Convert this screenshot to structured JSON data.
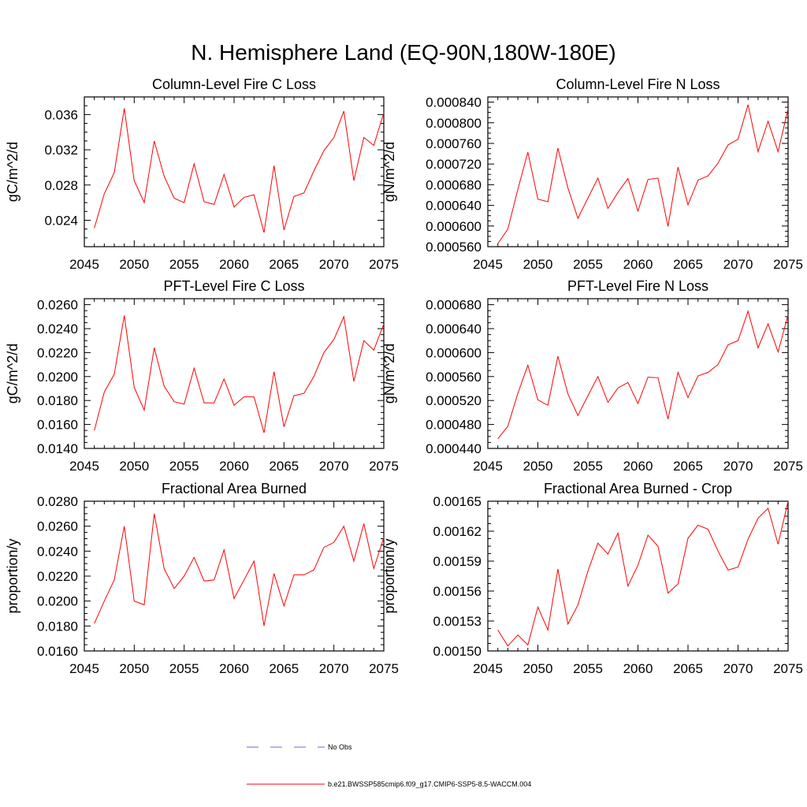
{
  "page_title": "N. Hemisphere Land (EQ-90N,180W-180E)",
  "legend": {
    "obs_label": "No Obs",
    "obs_color": "#6a6acd",
    "model_label": "b.e21.BWSSP585cmip6.f09_g17.CMIP6-SSP5-8.5-WACCM.004",
    "model_color": "#ff0000"
  },
  "chart_data": [
    {
      "type": "line",
      "title": "Column-Level Fire C Loss",
      "ylabel": "gC/m^2/d",
      "xlabel": "",
      "xlim": [
        2045,
        2075
      ],
      "ylim": [
        0.021,
        0.038
      ],
      "xticks": [
        2045,
        2050,
        2055,
        2060,
        2065,
        2070,
        2075
      ],
      "yticks": [
        0.024,
        0.028,
        0.032,
        0.036
      ],
      "ytick_labels": [
        "0.024",
        "0.028",
        "0.032",
        "0.036"
      ],
      "x": [
        2046,
        2047,
        2048,
        2049,
        2050,
        2051,
        2052,
        2053,
        2054,
        2055,
        2056,
        2057,
        2058,
        2059,
        2060,
        2061,
        2062,
        2063,
        2064,
        2065,
        2066,
        2067,
        2068,
        2069,
        2070,
        2071,
        2072,
        2073,
        2074,
        2075
      ],
      "series": [
        {
          "values": [
            0.0231,
            0.027,
            0.0294,
            0.0367,
            0.0285,
            0.026,
            0.033,
            0.029,
            0.0265,
            0.026,
            0.0304,
            0.0261,
            0.0258,
            0.0292,
            0.0255,
            0.0266,
            0.0269,
            0.0226,
            0.0302,
            0.0229,
            0.0267,
            0.0271,
            0.0296,
            0.0319,
            0.0334,
            0.0364,
            0.0285,
            0.0334,
            0.0325,
            0.0362
          ]
        }
      ],
      "grid": false
    },
    {
      "type": "line",
      "title": "Column-Level Fire N Loss",
      "ylabel": "gN/m^2/d",
      "xlabel": "",
      "xlim": [
        2045,
        2075
      ],
      "ylim": [
        0.00056,
        0.00085
      ],
      "xticks": [
        2045,
        2050,
        2055,
        2060,
        2065,
        2070,
        2075
      ],
      "yticks": [
        0.00056,
        0.0006,
        0.00064,
        0.00068,
        0.00072,
        0.00076,
        0.0008,
        0.00084
      ],
      "ytick_labels": [
        "0.000560",
        "0.000600",
        "0.000640",
        "0.000680",
        "0.000720",
        "0.000760",
        "0.000800",
        "0.000840"
      ],
      "x": [
        2046,
        2047,
        2048,
        2049,
        2050,
        2051,
        2052,
        2053,
        2054,
        2055,
        2056,
        2057,
        2058,
        2059,
        2060,
        2061,
        2062,
        2063,
        2064,
        2065,
        2066,
        2067,
        2068,
        2069,
        2070,
        2071,
        2072,
        2073,
        2074,
        2075
      ],
      "series": [
        {
          "values": [
            0.000566,
            0.000594,
            0.000671,
            0.000743,
            0.000652,
            0.000647,
            0.000751,
            0.000674,
            0.000615,
            0.000654,
            0.000693,
            0.000634,
            0.000665,
            0.000692,
            0.000629,
            0.00069,
            0.000693,
            0.000599,
            0.000714,
            0.000641,
            0.000689,
            0.000697,
            0.000722,
            0.000757,
            0.000768,
            0.000835,
            0.000744,
            0.000803,
            0.000744,
            0.000827
          ]
        }
      ],
      "grid": false
    },
    {
      "type": "line",
      "title": "PFT-Level Fire C Loss",
      "ylabel": "gC/m^2/d",
      "xlabel": "",
      "xlim": [
        2045,
        2075
      ],
      "ylim": [
        0.014,
        0.0265
      ],
      "xticks": [
        2045,
        2050,
        2055,
        2060,
        2065,
        2070,
        2075
      ],
      "yticks": [
        0.014,
        0.016,
        0.018,
        0.02,
        0.022,
        0.024,
        0.026
      ],
      "ytick_labels": [
        "0.0140",
        "0.0160",
        "0.0180",
        "0.0200",
        "0.0220",
        "0.0240",
        "0.0260"
      ],
      "x": [
        2046,
        2047,
        2048,
        2049,
        2050,
        2051,
        2052,
        2053,
        2054,
        2055,
        2056,
        2057,
        2058,
        2059,
        2060,
        2061,
        2062,
        2063,
        2064,
        2065,
        2066,
        2067,
        2068,
        2069,
        2070,
        2071,
        2072,
        2073,
        2074,
        2075
      ],
      "series": [
        {
          "values": [
            0.0155,
            0.0187,
            0.0202,
            0.0251,
            0.0191,
            0.0172,
            0.0224,
            0.0192,
            0.0179,
            0.0177,
            0.0207,
            0.0178,
            0.0178,
            0.0198,
            0.0176,
            0.0183,
            0.0183,
            0.0153,
            0.0204,
            0.0158,
            0.0184,
            0.0186,
            0.02,
            0.022,
            0.0231,
            0.025,
            0.0196,
            0.023,
            0.0222,
            0.0244
          ]
        }
      ],
      "grid": false
    },
    {
      "type": "line",
      "title": "PFT-Level Fire N Loss",
      "ylabel": "gN/m^2/d",
      "xlabel": "",
      "xlim": [
        2045,
        2075
      ],
      "ylim": [
        0.00044,
        0.00069
      ],
      "xticks": [
        2045,
        2050,
        2055,
        2060,
        2065,
        2070,
        2075
      ],
      "yticks": [
        0.00044,
        0.00048,
        0.00052,
        0.00056,
        0.0006,
        0.00064,
        0.00068
      ],
      "ytick_labels": [
        "0.000440",
        "0.000480",
        "0.000520",
        "0.000560",
        "0.000600",
        "0.000640",
        "0.000680"
      ],
      "x": [
        2046,
        2047,
        2048,
        2049,
        2050,
        2051,
        2052,
        2053,
        2054,
        2055,
        2056,
        2057,
        2058,
        2059,
        2060,
        2061,
        2062,
        2063,
        2064,
        2065,
        2066,
        2067,
        2068,
        2069,
        2070,
        2071,
        2072,
        2073,
        2074,
        2075
      ],
      "series": [
        {
          "values": [
            0.000456,
            0.000477,
            0.000532,
            0.000579,
            0.000521,
            0.000512,
            0.000594,
            0.000531,
            0.000495,
            0.000528,
            0.00056,
            0.000517,
            0.000541,
            0.00055,
            0.000515,
            0.000559,
            0.000558,
            0.000489,
            0.000567,
            0.000525,
            0.000561,
            0.000567,
            0.00058,
            0.000613,
            0.00062,
            0.000669,
            0.000608,
            0.000648,
            0.000601,
            0.000663
          ]
        }
      ],
      "grid": false
    },
    {
      "type": "line",
      "title": "Fractional Area Burned",
      "ylabel": "proportion/y",
      "xlabel": "",
      "xlim": [
        2045,
        2075
      ],
      "ylim": [
        0.016,
        0.028
      ],
      "xticks": [
        2045,
        2050,
        2055,
        2060,
        2065,
        2070,
        2075
      ],
      "yticks": [
        0.016,
        0.018,
        0.02,
        0.022,
        0.024,
        0.026,
        0.028
      ],
      "ytick_labels": [
        "0.0160",
        "0.0180",
        "0.0200",
        "0.0220",
        "0.0240",
        "0.0260",
        "0.0280"
      ],
      "x": [
        2046,
        2047,
        2048,
        2049,
        2050,
        2051,
        2052,
        2053,
        2054,
        2055,
        2056,
        2057,
        2058,
        2059,
        2060,
        2061,
        2062,
        2063,
        2064,
        2065,
        2066,
        2067,
        2068,
        2069,
        2070,
        2071,
        2072,
        2073,
        2074,
        2075
      ],
      "series": [
        {
          "values": [
            0.0182,
            0.02,
            0.0217,
            0.026,
            0.02,
            0.0197,
            0.027,
            0.0226,
            0.021,
            0.022,
            0.0235,
            0.0216,
            0.0217,
            0.0241,
            0.0202,
            0.0217,
            0.0232,
            0.018,
            0.0222,
            0.0196,
            0.0221,
            0.0221,
            0.0225,
            0.0243,
            0.0247,
            0.026,
            0.0232,
            0.0262,
            0.0226,
            0.0251
          ]
        }
      ],
      "grid": false
    },
    {
      "type": "line",
      "title": "Fractional Area Burned - Crop",
      "ylabel": "proportion/y",
      "xlabel": "",
      "xlim": [
        2045,
        2075
      ],
      "ylim": [
        0.0015,
        0.00165
      ],
      "xticks": [
        2045,
        2050,
        2055,
        2060,
        2065,
        2070,
        2075
      ],
      "yticks": [
        0.0015,
        0.00153,
        0.00156,
        0.00159,
        0.00162,
        0.00165
      ],
      "ytick_labels": [
        "0.00150",
        "0.00153",
        "0.00156",
        "0.00159",
        "0.00162",
        "0.00165"
      ],
      "x": [
        2046,
        2047,
        2048,
        2049,
        2050,
        2051,
        2052,
        2053,
        2054,
        2055,
        2056,
        2057,
        2058,
        2059,
        2060,
        2061,
        2062,
        2063,
        2064,
        2065,
        2066,
        2067,
        2068,
        2069,
        2070,
        2071,
        2072,
        2073,
        2074,
        2075
      ],
      "series": [
        {
          "values": [
            0.001521,
            0.001505,
            0.001516,
            0.001506,
            0.001544,
            0.001521,
            0.001582,
            0.001527,
            0.001546,
            0.00158,
            0.001608,
            0.001597,
            0.001618,
            0.001565,
            0.001586,
            0.001616,
            0.001605,
            0.001558,
            0.001567,
            0.001613,
            0.001626,
            0.001622,
            0.0016,
            0.001581,
            0.001584,
            0.001612,
            0.001633,
            0.001643,
            0.001607,
            0.00165
          ]
        }
      ],
      "grid": false
    }
  ]
}
